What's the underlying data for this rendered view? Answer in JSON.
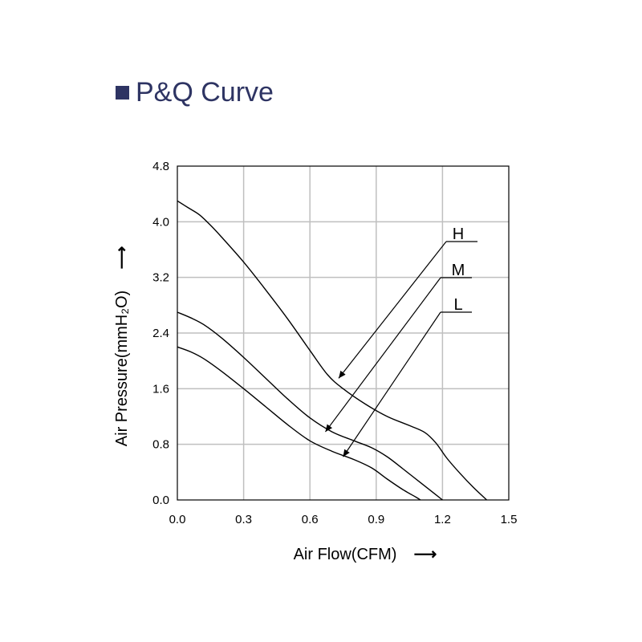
{
  "title": "P&Q Curve",
  "colors": {
    "title": "#2e3463",
    "marker": "#2e3463",
    "grid": "#bfbfbf",
    "curve": "#000000",
    "frame": "#000000"
  },
  "chart_data": {
    "type": "line",
    "title": "P&Q Curve",
    "xlabel": "Air Flow(CFM)",
    "ylabel": "Air Pressure(mmH₂O)",
    "xlim": [
      0,
      1.5
    ],
    "ylim": [
      0,
      4.8
    ],
    "xticks": [
      "0.0",
      "0.3",
      "0.6",
      "0.9",
      "1.2",
      "1.5"
    ],
    "yticks": [
      "0.0",
      "0.8",
      "1.6",
      "2.4",
      "3.2",
      "4.0",
      "4.8"
    ],
    "grid": true,
    "series": [
      {
        "name": "H",
        "x": [
          0.0,
          0.05,
          0.1,
          0.15,
          0.2,
          0.3,
          0.4,
          0.5,
          0.6,
          0.68,
          0.75,
          0.85,
          0.95,
          1.05,
          1.12,
          1.17,
          1.22,
          1.28,
          1.34,
          1.4
        ],
        "y": [
          4.3,
          4.2,
          4.1,
          3.95,
          3.78,
          3.42,
          3.02,
          2.6,
          2.15,
          1.8,
          1.6,
          1.38,
          1.2,
          1.07,
          0.97,
          0.82,
          0.6,
          0.38,
          0.18,
          0.0
        ]
      },
      {
        "name": "M",
        "x": [
          0.0,
          0.06,
          0.12,
          0.2,
          0.3,
          0.4,
          0.5,
          0.6,
          0.7,
          0.8,
          0.88,
          0.95,
          1.02,
          1.1,
          1.16,
          1.2
        ],
        "y": [
          2.7,
          2.62,
          2.52,
          2.33,
          2.05,
          1.75,
          1.45,
          1.18,
          0.98,
          0.85,
          0.75,
          0.62,
          0.45,
          0.25,
          0.1,
          0.0
        ]
      },
      {
        "name": "L",
        "x": [
          0.0,
          0.06,
          0.12,
          0.2,
          0.3,
          0.4,
          0.5,
          0.6,
          0.7,
          0.8,
          0.88,
          0.95,
          1.02,
          1.08,
          1.1
        ],
        "y": [
          2.2,
          2.13,
          2.03,
          1.85,
          1.6,
          1.34,
          1.08,
          0.85,
          0.7,
          0.58,
          0.46,
          0.3,
          0.15,
          0.04,
          0.0
        ]
      }
    ],
    "annotations": [
      {
        "label": "H",
        "target_x": 0.73,
        "target_y": 1.75
      },
      {
        "label": "M",
        "target_x": 0.67,
        "target_y": 0.98
      },
      {
        "label": "L",
        "target_x": 0.75,
        "target_y": 0.62
      }
    ],
    "axis_arrows": {
      "x": "⟶",
      "y": "⟶"
    }
  }
}
